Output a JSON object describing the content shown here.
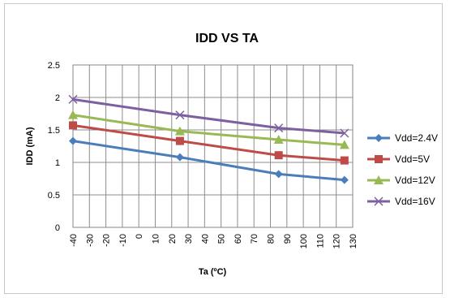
{
  "chart_data": {
    "type": "line",
    "title": "IDD VS TA",
    "xlabel": "Ta (ºC)",
    "ylabel": "IDD (mA)",
    "ylim": [
      0,
      2.5
    ],
    "xlim": [
      -40,
      130
    ],
    "grid": true,
    "legend_position": "right",
    "y_ticks": [
      "0",
      "0.5",
      "1",
      "1.5",
      "2",
      "2.5"
    ],
    "x_ticks": [
      "-40",
      "-30",
      "-20",
      "-10",
      "0",
      "10",
      "20",
      "30",
      "40",
      "50",
      "60",
      "70",
      "80",
      "90",
      "100",
      "110",
      "120",
      "130"
    ],
    "series": [
      {
        "name": "Vdd=2.4V",
        "color": "#4a7ebb",
        "marker": "diamond",
        "x": [
          -40,
          25,
          85,
          125
        ],
        "y": [
          1.33,
          1.08,
          0.82,
          0.73
        ]
      },
      {
        "name": "Vdd=5V",
        "color": "#be4b48",
        "marker": "square",
        "x": [
          -40,
          25,
          85,
          125
        ],
        "y": [
          1.57,
          1.33,
          1.11,
          1.03
        ]
      },
      {
        "name": "Vdd=12V",
        "color": "#98b954",
        "marker": "triangle",
        "x": [
          -40,
          25,
          85,
          125
        ],
        "y": [
          1.73,
          1.48,
          1.35,
          1.27
        ]
      },
      {
        "name": "Vdd=16V",
        "color": "#7d60a0",
        "marker": "x",
        "x": [
          -40,
          25,
          85,
          125
        ],
        "y": [
          1.97,
          1.73,
          1.53,
          1.45
        ]
      }
    ]
  }
}
